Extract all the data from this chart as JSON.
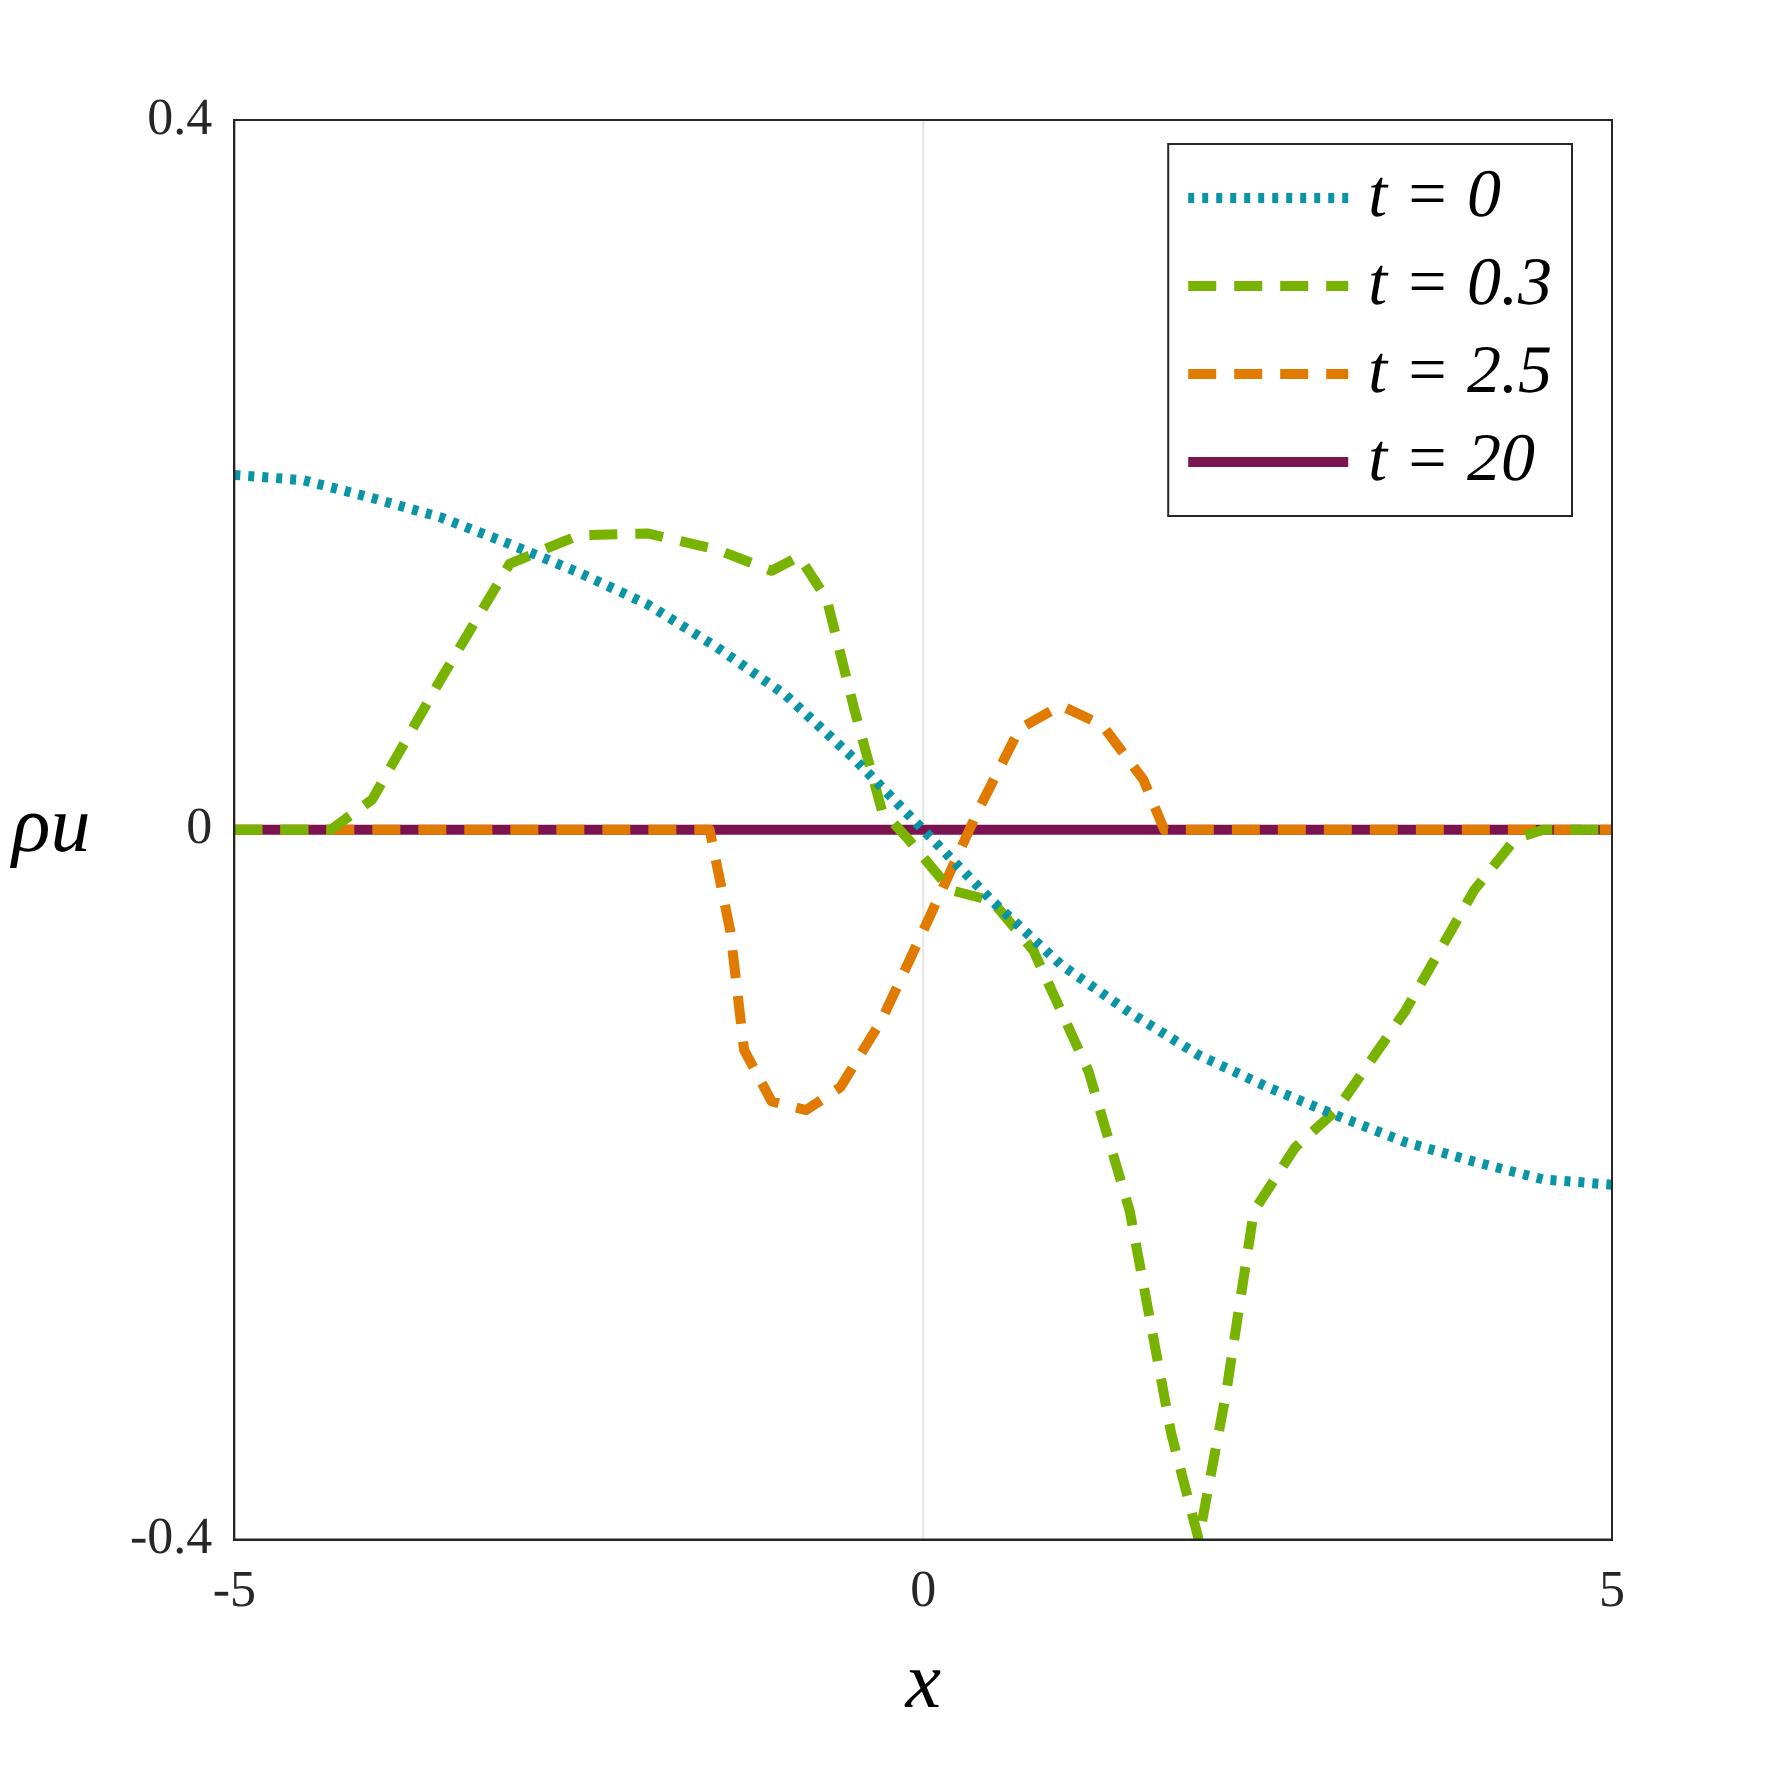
{
  "chart_data": {
    "type": "line",
    "xlabel": "x",
    "ylabel": "ρu",
    "xlim": [
      -5,
      5
    ],
    "ylim": [
      -0.4,
      0.4
    ],
    "xticks": [
      -5,
      0,
      5
    ],
    "yticks": [
      -0.4,
      0,
      0.4
    ],
    "grid": false,
    "legend": "top right",
    "marker": "none",
    "ref_lines": [
      {
        "axis": "x",
        "value": 0,
        "color": "#e6e6e6"
      }
    ],
    "series": [
      {
        "name": "t = 0",
        "color": "#0a95a6",
        "line_style": "dotted",
        "x": [
          -5,
          -4.5,
          -4,
          -3.5,
          -3,
          -2.5,
          -2,
          -1.5,
          -1,
          -0.5,
          0,
          0.5,
          1,
          1.5,
          2,
          2.5,
          3,
          3.5,
          4,
          4.5,
          5
        ],
        "values": [
          0.2,
          0.197,
          0.187,
          0.176,
          0.161,
          0.145,
          0.127,
          0.103,
          0.076,
          0.04,
          0,
          -0.04,
          -0.076,
          -0.103,
          -0.127,
          -0.145,
          -0.161,
          -0.176,
          -0.187,
          -0.197,
          -0.2
        ]
      },
      {
        "name": "t = 0.3",
        "color": "#77b300",
        "line_style": "dashed",
        "x": [
          -5,
          -4.3,
          -4,
          -3.5,
          -3,
          -2.5,
          -2,
          -1.5,
          -1.1,
          -0.9,
          -0.7,
          -0.5,
          -0.3,
          -0.1,
          0.2,
          0.5,
          0.8,
          1.2,
          1.5,
          1.8,
          2,
          2.2,
          2.4,
          2.7,
          3,
          3.5,
          4,
          4.3,
          4.5,
          5
        ],
        "values": [
          0,
          0,
          0.017,
          0.085,
          0.15,
          0.166,
          0.167,
          0.158,
          0.146,
          0.154,
          0.13,
          0.068,
          0.011,
          -0.006,
          -0.034,
          -0.04,
          -0.068,
          -0.136,
          -0.215,
          -0.34,
          -0.4,
          -0.317,
          -0.215,
          -0.179,
          -0.158,
          -0.102,
          -0.034,
          -0.005,
          0,
          0
        ]
      },
      {
        "name": "t = 2.5",
        "color": "#e07b00",
        "line_style": "dashed",
        "x": [
          -5,
          -1.55,
          -1.4,
          -1.3,
          -1.1,
          -0.85,
          -0.6,
          -0.3,
          0,
          0.2,
          0.4,
          0.7,
          1,
          1.3,
          1.6,
          1.75,
          5
        ],
        "values": [
          0,
          0,
          -0.057,
          -0.124,
          -0.153,
          -0.158,
          -0.145,
          -0.107,
          -0.057,
          -0.023,
          0.011,
          0.057,
          0.07,
          0.059,
          0.028,
          0,
          0
        ]
      },
      {
        "name": "t = 20",
        "color": "#7b1350",
        "line_style": "solid",
        "x": [
          -5,
          5
        ],
        "values": [
          0,
          0
        ]
      }
    ]
  }
}
